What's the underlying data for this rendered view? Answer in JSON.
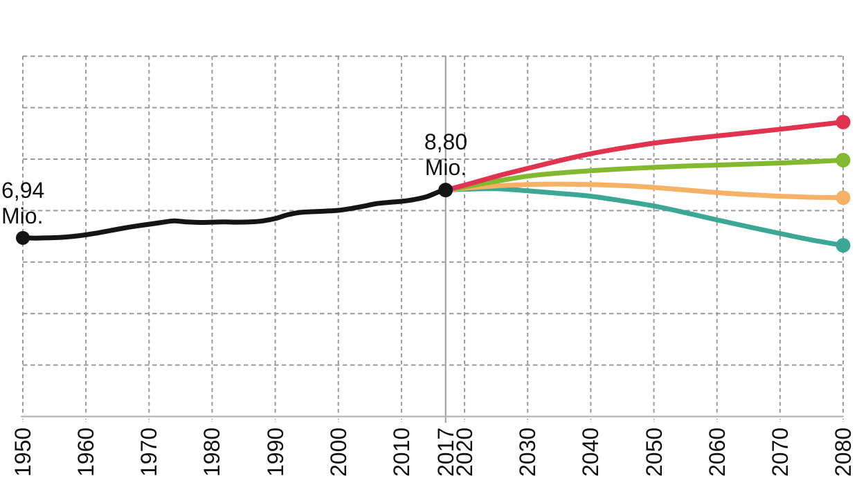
{
  "colors": {
    "background": "#ffffff",
    "grid": "#999999",
    "axis": "#b9b9b9",
    "divider_line": "#9c9c9c",
    "tick": "#aaaaaa",
    "text": "#111111"
  },
  "chart_data": {
    "type": "line",
    "title": "",
    "unit_label": "Mio.",
    "x_axis": {
      "range": [
        1950,
        2080
      ],
      "label_rotation_deg": -90,
      "ticks": [
        {
          "year": 1950,
          "label": "1950"
        },
        {
          "year": 1960,
          "label": "1960"
        },
        {
          "year": 1970,
          "label": "1970"
        },
        {
          "year": 1980,
          "label": "1980"
        },
        {
          "year": 1990,
          "label": "1990"
        },
        {
          "year": 2000,
          "label": "2000"
        },
        {
          "year": 2010,
          "label": "2010"
        },
        {
          "year": 2017,
          "label": "2017"
        },
        {
          "year": 2020,
          "label": "2020"
        },
        {
          "year": 2030,
          "label": "2030"
        },
        {
          "year": 2040,
          "label": "2040"
        },
        {
          "year": 2050,
          "label": "2050"
        },
        {
          "year": 2060,
          "label": "2060"
        },
        {
          "year": 2070,
          "label": "2070"
        },
        {
          "year": 2080,
          "label": "2080"
        }
      ]
    },
    "y_axis": {
      "range_mio": [
        0,
        14
      ],
      "gridline_step_mio": 2,
      "gridline_values": [
        2,
        4,
        6,
        8,
        10,
        12,
        14
      ],
      "tick_labels_visible": false
    },
    "grid": {
      "style": "dashed",
      "on": true
    },
    "divider_year": 2017,
    "annotations": [
      {
        "line1": "6,94",
        "line2": "Mio.",
        "year": 1950,
        "value_mio": 6.94
      },
      {
        "line1": "8,80",
        "line2": "Mio.",
        "year": 2017,
        "value_mio": 8.8
      }
    ],
    "series": [
      {
        "name": "historical-population",
        "color": "#151515",
        "start_dot": true,
        "end_dot": true,
        "points": [
          [
            1950,
            6.94
          ],
          [
            1952,
            6.93
          ],
          [
            1954,
            6.94
          ],
          [
            1956,
            6.96
          ],
          [
            1958,
            7.0
          ],
          [
            1960,
            7.06
          ],
          [
            1962,
            7.14
          ],
          [
            1964,
            7.23
          ],
          [
            1966,
            7.32
          ],
          [
            1968,
            7.4
          ],
          [
            1970,
            7.47
          ],
          [
            1972,
            7.54
          ],
          [
            1974,
            7.6
          ],
          [
            1976,
            7.56
          ],
          [
            1978,
            7.54
          ],
          [
            1980,
            7.55
          ],
          [
            1982,
            7.56
          ],
          [
            1984,
            7.55
          ],
          [
            1986,
            7.56
          ],
          [
            1988,
            7.6
          ],
          [
            1990,
            7.69
          ],
          [
            1992,
            7.84
          ],
          [
            1994,
            7.93
          ],
          [
            1996,
            7.96
          ],
          [
            1998,
            7.98
          ],
          [
            2000,
            8.01
          ],
          [
            2002,
            8.08
          ],
          [
            2004,
            8.17
          ],
          [
            2006,
            8.27
          ],
          [
            2008,
            8.32
          ],
          [
            2010,
            8.36
          ],
          [
            2012,
            8.43
          ],
          [
            2014,
            8.54
          ],
          [
            2016,
            8.74
          ],
          [
            2017,
            8.8
          ]
        ]
      },
      {
        "name": "projection-red",
        "color": "#e13350",
        "start_dot": false,
        "end_dot": true,
        "points": [
          [
            2017,
            8.8
          ],
          [
            2020,
            8.99
          ],
          [
            2025,
            9.33
          ],
          [
            2030,
            9.64
          ],
          [
            2035,
            9.94
          ],
          [
            2040,
            10.21
          ],
          [
            2045,
            10.43
          ],
          [
            2050,
            10.62
          ],
          [
            2055,
            10.77
          ],
          [
            2060,
            10.9
          ],
          [
            2065,
            11.03
          ],
          [
            2070,
            11.16
          ],
          [
            2075,
            11.3
          ],
          [
            2080,
            11.44
          ]
        ]
      },
      {
        "name": "projection-green",
        "color": "#82b931",
        "start_dot": false,
        "end_dot": true,
        "points": [
          [
            2017,
            8.8
          ],
          [
            2020,
            8.92
          ],
          [
            2025,
            9.14
          ],
          [
            2030,
            9.34
          ],
          [
            2035,
            9.46
          ],
          [
            2040,
            9.55
          ],
          [
            2045,
            9.62
          ],
          [
            2050,
            9.68
          ],
          [
            2055,
            9.73
          ],
          [
            2060,
            9.77
          ],
          [
            2065,
            9.81
          ],
          [
            2070,
            9.85
          ],
          [
            2075,
            9.9
          ],
          [
            2080,
            9.96
          ]
        ]
      },
      {
        "name": "projection-orange",
        "color": "#f6b164",
        "start_dot": false,
        "end_dot": true,
        "points": [
          [
            2017,
            8.8
          ],
          [
            2020,
            8.87
          ],
          [
            2025,
            8.96
          ],
          [
            2030,
            9.01
          ],
          [
            2035,
            9.03
          ],
          [
            2040,
            9.01
          ],
          [
            2045,
            8.97
          ],
          [
            2050,
            8.9
          ],
          [
            2055,
            8.8
          ],
          [
            2060,
            8.7
          ],
          [
            2065,
            8.62
          ],
          [
            2070,
            8.56
          ],
          [
            2075,
            8.52
          ],
          [
            2080,
            8.5
          ]
        ]
      },
      {
        "name": "projection-teal",
        "color": "#3ba794",
        "start_dot": false,
        "end_dot": true,
        "points": [
          [
            2017,
            8.8
          ],
          [
            2020,
            8.83
          ],
          [
            2025,
            8.85
          ],
          [
            2030,
            8.77
          ],
          [
            2035,
            8.67
          ],
          [
            2040,
            8.56
          ],
          [
            2045,
            8.38
          ],
          [
            2050,
            8.18
          ],
          [
            2055,
            7.92
          ],
          [
            2060,
            7.64
          ],
          [
            2065,
            7.37
          ],
          [
            2070,
            7.11
          ],
          [
            2075,
            6.86
          ],
          [
            2080,
            6.65
          ]
        ]
      }
    ]
  }
}
